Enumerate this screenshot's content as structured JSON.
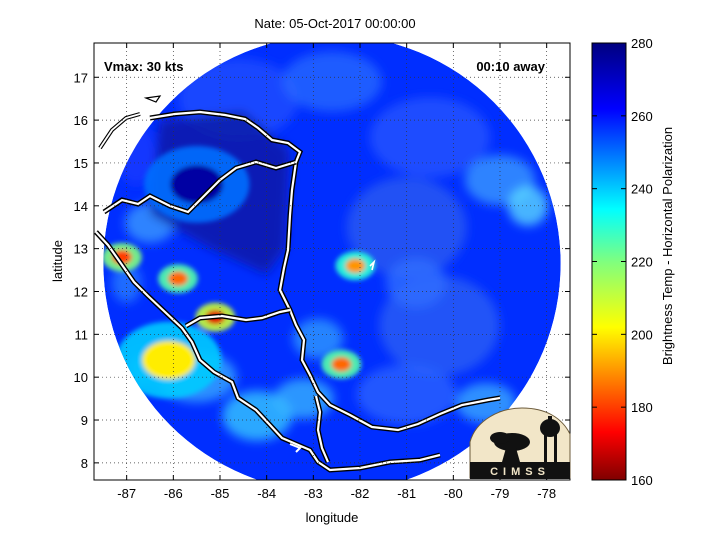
{
  "title": "Nate: 05-Oct-2017 00:00:00",
  "annotations": {
    "vmax": "Vmax: 30 kts",
    "away": "00:10 away"
  },
  "logo_text": "CIMSS",
  "chart_data": {
    "type": "heatmap",
    "title": "Nate: 05-Oct-2017 00:00:00",
    "xlabel": "longitude",
    "ylabel": "latitude",
    "xlim": [
      -87.7,
      -77.5
    ],
    "ylim": [
      7.6,
      17.8
    ],
    "x_ticks": [
      -87,
      -86,
      -85,
      -84,
      -83,
      -82,
      -81,
      -80,
      -79,
      -78
    ],
    "y_ticks": [
      8,
      9,
      10,
      11,
      12,
      13,
      14,
      15,
      16,
      17
    ],
    "grid": "dotted",
    "colorbar": {
      "label": "Brightness Temp - Horizontal Polarization",
      "min": 160,
      "max": 280,
      "ticks": [
        160,
        180,
        200,
        220,
        240,
        260,
        280
      ],
      "colormap": "jet"
    },
    "swath": {
      "center_lon": -82.6,
      "center_lat": 12.65,
      "radius_deg": 4.9
    },
    "storm_center": {
      "lon": -82.1,
      "lat": 12.5
    },
    "features": [
      {
        "name": "cold-band-nicaragua",
        "lon": -85.1,
        "lat": 11.4,
        "value": 170
      },
      {
        "name": "cold-band-coast",
        "lon": -87.1,
        "lat": 12.8,
        "value": 180
      },
      {
        "name": "cold-cell-honduras",
        "lon": -85.9,
        "lat": 12.3,
        "value": 185
      },
      {
        "name": "cold-cell-southeast",
        "lon": -82.4,
        "lat": 10.3,
        "value": 185
      },
      {
        "name": "cold-cell-center",
        "lon": -82.1,
        "lat": 12.6,
        "value": 190
      },
      {
        "name": "cold-cell-south",
        "lon": -86.1,
        "lat": 10.4,
        "value": 200
      },
      {
        "name": "warm-land-honduras",
        "lon": -85.5,
        "lat": 14.5,
        "value": 275
      }
    ]
  }
}
